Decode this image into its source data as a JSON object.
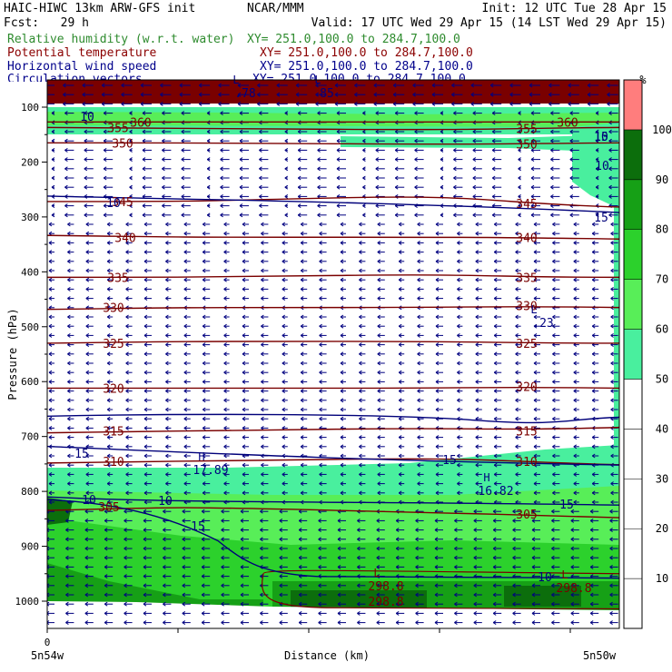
{
  "header": {
    "title_left": "HAIC-HIWC 13km ARW-GFS init",
    "center_org": "NCAR/MMM",
    "init_line": "Init: 12 UTC Tue 28 Apr 15",
    "fcst_line": "Fcst:   29 h",
    "valid_line": "Valid: 17 UTC Wed 29 Apr 15 (14 LST Wed 29 Apr 15)"
  },
  "fields": [
    {
      "name": "Relative humidity (w.r.t. water)",
      "xy": "XY= 251.0,100.0 to 284.7,100.0",
      "color": "#2e8b2e"
    },
    {
      "name": "Potential temperature",
      "xy": "XY= 251.0,100.0 to 284.7,100.0",
      "color": "#8b0000"
    },
    {
      "name": "Horizontal wind speed",
      "xy": "XY= 251.0,100.0 to 284.7,100.0",
      "color": "#00008b"
    },
    {
      "name": "Circulation vectors",
      "xy": "XY= 251.0,100.0 to 284.7,100.0",
      "color": "#00008b"
    }
  ],
  "colors": {
    "theta": "#7a0000",
    "wind": "#00007a",
    "vector": "#000080",
    "rh_bins": [
      "#ffffff",
      "#ffffff",
      "#ffffff",
      "#ffffff",
      "#ffffff",
      "#49ef9e",
      "#58ee58",
      "#2cd12c",
      "#16a016",
      "#0c6e0c",
      "#ff7d7d"
    ]
  },
  "chart_data": {
    "type": "contour-cross-section",
    "ylabel": "Pressure (hPa)",
    "xlabel": "Distance (km)",
    "y_ticks": [
      100,
      200,
      300,
      400,
      500,
      600,
      700,
      800,
      900,
      1000
    ],
    "x_tick_label": "0",
    "x_left_label": "5n54w",
    "x_right_label": "5n50w",
    "ylim": [
      1050,
      80
    ],
    "colorbar": {
      "unit": "%",
      "ticks": [
        10,
        20,
        30,
        40,
        50,
        60,
        70,
        80,
        90,
        100
      ],
      "bins": [
        0,
        10,
        20,
        30,
        40,
        50,
        60,
        70,
        80,
        90,
        100,
        110
      ]
    },
    "theta_contours": [
      {
        "label": "360",
        "p": 127
      },
      {
        "label": "355",
        "p": 137
      },
      {
        "label": "350",
        "p": 165
      },
      {
        "label": "345",
        "p": 272
      },
      {
        "label": "340",
        "p": 337
      },
      {
        "label": "335",
        "p": 410
      },
      {
        "label": "330",
        "p": 465
      },
      {
        "label": "325",
        "p": 530
      },
      {
        "label": "320",
        "p": 612
      },
      {
        "label": "315",
        "p": 690
      },
      {
        "label": "310",
        "p": 745
      },
      {
        "label": "305",
        "p": 828
      },
      {
        "label": "298.8",
        "p": 1000
      }
    ],
    "wind_labels": [
      "10",
      "15",
      "10",
      "10",
      "15",
      "15",
      "15",
      "10",
      "10",
      "15",
      "15",
      "10",
      "10"
    ],
    "extrema": [
      {
        "type": "H",
        "value": "17.89"
      },
      {
        "type": "H",
        "value": "16.82"
      },
      {
        "type": "L",
        "value": ".23"
      },
      {
        "type": "L",
        "value": "298.8"
      },
      {
        "type": "L",
        "value": "298.8"
      },
      {
        "type": "L",
        "value": ".78"
      },
      {
        "type": "L",
        "value": "85"
      }
    ]
  }
}
